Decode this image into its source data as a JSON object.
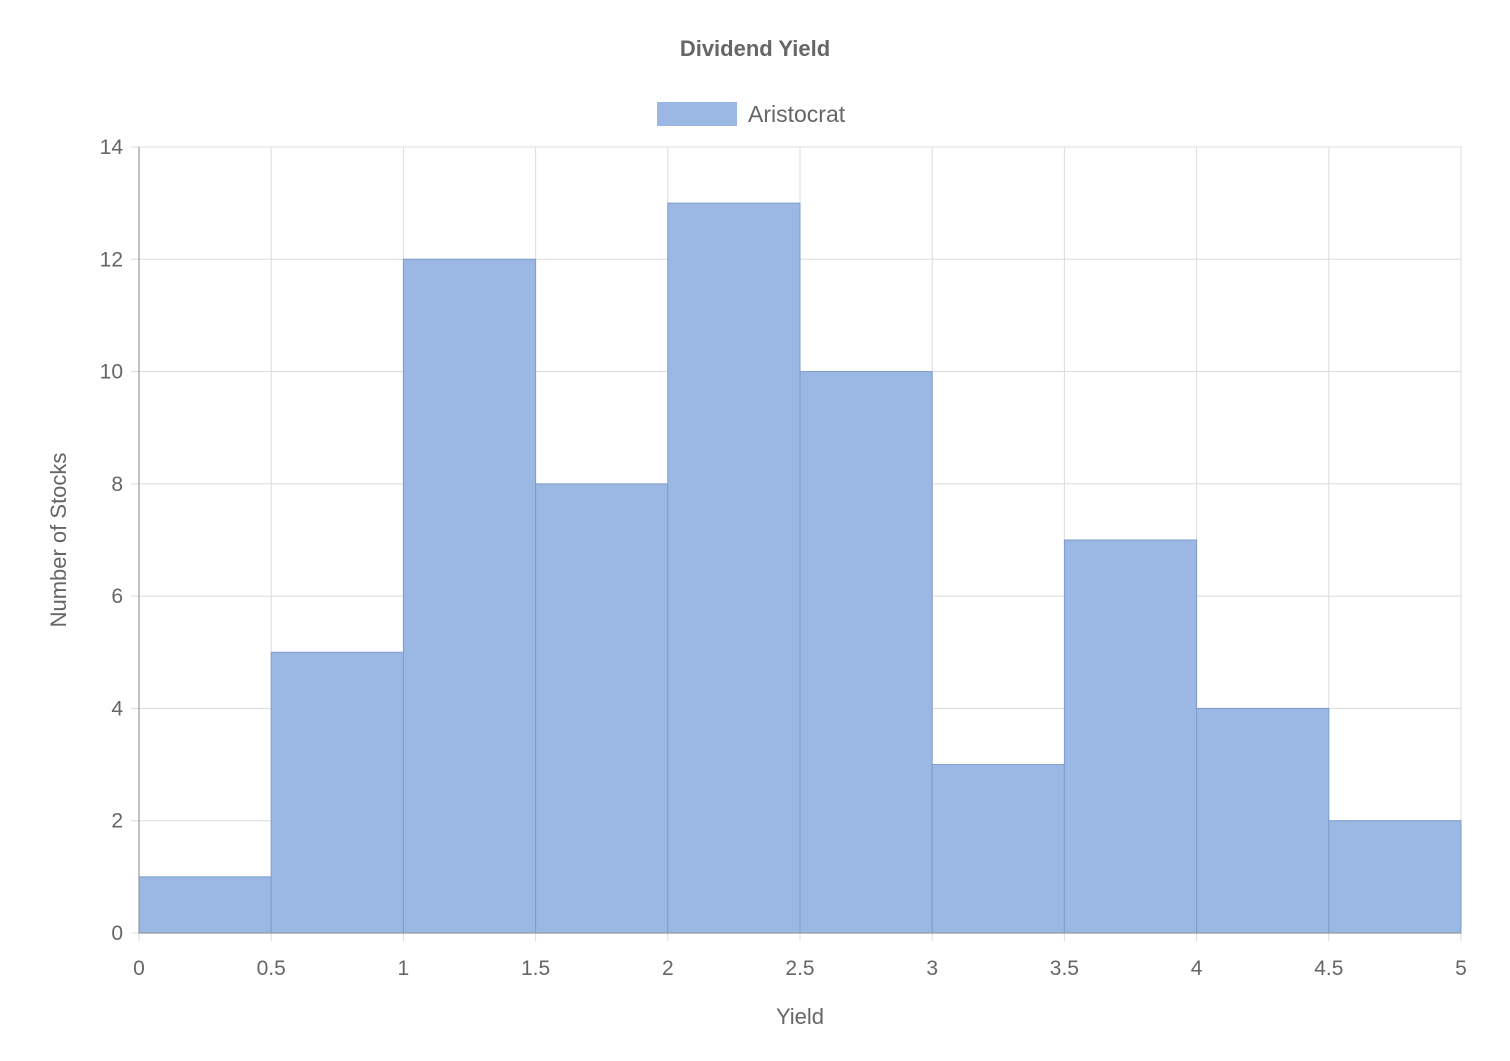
{
  "chart_data": {
    "type": "bar",
    "subtype": "histogram",
    "title": "Dividend Yield",
    "xlabel": "Yield",
    "ylabel": "Number of Stocks",
    "xlim": [
      0,
      5
    ],
    "ylim": [
      0,
      14
    ],
    "x_ticks": [
      "0",
      "0.5",
      "1",
      "1.5",
      "2",
      "2.5",
      "3",
      "3.5",
      "4",
      "4.5",
      "5"
    ],
    "y_ticks": [
      "0",
      "2",
      "4",
      "6",
      "8",
      "10",
      "12",
      "14"
    ],
    "bins": [
      [
        0,
        0.5
      ],
      [
        0.5,
        1
      ],
      [
        1,
        1.5
      ],
      [
        1.5,
        2
      ],
      [
        2,
        2.5
      ],
      [
        2.5,
        3
      ],
      [
        3,
        3.5
      ],
      [
        3.5,
        4
      ],
      [
        4,
        4.5
      ],
      [
        4.5,
        5
      ]
    ],
    "series": [
      {
        "name": "Aristocrat",
        "values": [
          1,
          5,
          12,
          8,
          13,
          10,
          3,
          7,
          4,
          2
        ],
        "color": "#9ab8e3",
        "border_color": "#7f9ccb"
      }
    ],
    "grid": true,
    "legend_position": "top"
  }
}
